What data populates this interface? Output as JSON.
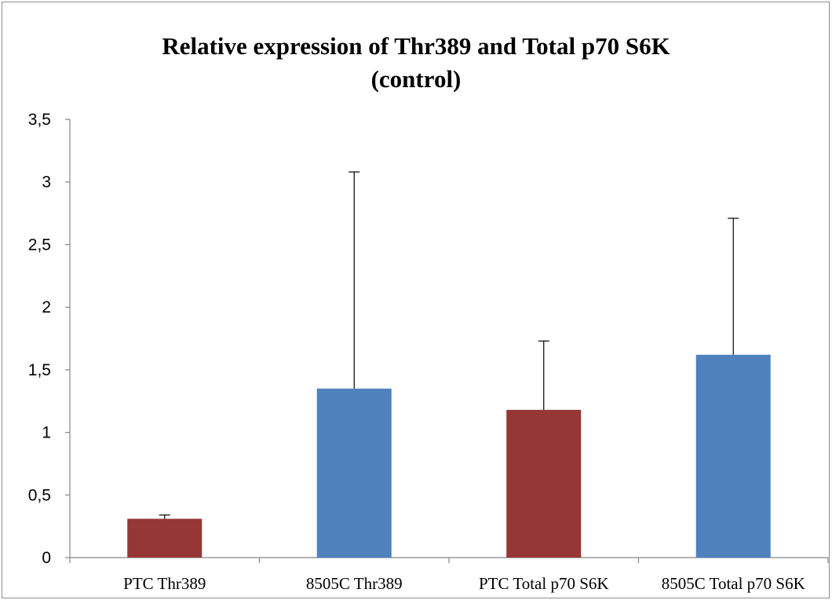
{
  "chart_data": {
    "type": "bar",
    "title_lines": [
      "Relative expression  of Thr389 and Total p70 S6K",
      "(control)"
    ],
    "xlabel": "",
    "ylabel": "",
    "categories": [
      "PTC Thr389",
      "8505C Thr389",
      "PTC Total p70 S6K",
      "8505C Total p70 S6K"
    ],
    "values": [
      0.31,
      1.35,
      1.18,
      1.62
    ],
    "error_upper": [
      0.03,
      1.73,
      0.55,
      1.09
    ],
    "bar_colors": [
      "#953735",
      "#4f81bd",
      "#953735",
      "#4f81bd"
    ],
    "ylim": [
      0,
      3.5
    ],
    "y_ticks": [
      0,
      0.5,
      1,
      1.5,
      2,
      2.5,
      3,
      3.5
    ],
    "y_tick_labels": [
      "0",
      "0,5",
      "1",
      "1,5",
      "2",
      "2,5",
      "3",
      "3,5"
    ],
    "grid": false,
    "legend": "none"
  }
}
